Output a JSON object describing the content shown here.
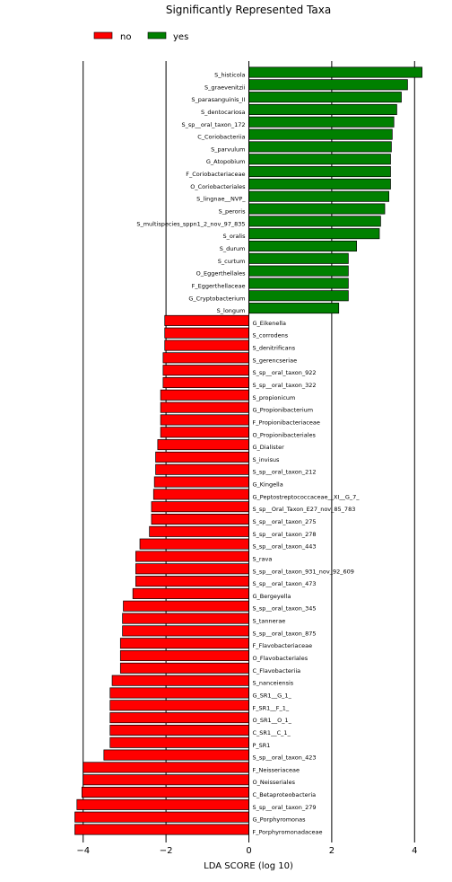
{
  "chart_data": {
    "type": "bar",
    "orientation": "horizontal",
    "title": "Significantly Represented Taxa",
    "xlabel": "LDA SCORE (log 10)",
    "ylabel": "",
    "xlim": [
      -4.6,
      4.6
    ],
    "xticks": [
      -4,
      -2,
      0,
      2,
      4
    ],
    "grid": "vertical lines at x ticks",
    "legend": {
      "position": "top-left",
      "entries": [
        {
          "name": "no",
          "color": "#ff0000"
        },
        {
          "name": "yes",
          "color": "#008000"
        }
      ]
    },
    "colors": {
      "yes": "#008000",
      "no": "#ff0000",
      "edge": "#000000"
    },
    "categories": [
      "S_histicola",
      "S_graevenitzii",
      "S_parasanguinis_II",
      "S_dentocariosa",
      "S_sp__oral_taxon_172",
      "C_Coriobacteriia",
      "S_parvulum",
      "G_Atopobium",
      "F_Coriobacteriaceae",
      "O_Coriobacteriales",
      "S_lingnae__NVP_",
      "S_peroris",
      "S_multispecies_sppn1_2_nov_97_835",
      "S_oralis",
      "S_durum",
      "S_curtum",
      "O_Eggerthellales",
      "F_Eggerthellaceae",
      "G_Cryptobacterium",
      "S_longum",
      "G_Eikenella",
      "S_corrodens",
      "S_denitrificans",
      "S_gerencseriae",
      "S_sp__oral_taxon_922",
      "S_sp__oral_taxon_322",
      "S_propionicum",
      "G_Propionibacterium",
      "F_Propionibacteriaceae",
      "O_Propionibacteriales",
      "G_Dialister",
      "S_invisus",
      "S_sp__oral_taxon_212",
      "G_Kingella",
      "G_Peptostreptococcaceae__XI__G_7_",
      "S_sp__Oral_Taxon_E27_nov_85_783",
      "S_sp__oral_taxon_275",
      "S_sp__oral_taxon_278",
      "S_sp__oral_taxon_443",
      "S_rava",
      "S_sp__oral_taxon_931_nov_92_609",
      "S_sp__oral_taxon_473",
      "G_Bergeyella",
      "S_sp__oral_taxon_345",
      "S_tannerae",
      "S_sp__oral_taxon_875",
      "F_Flavobacteriaceae",
      "O_Flavobacteriales",
      "C_Flavobacteriia",
      "S_nanceiensis",
      "G_SR1__G_1_",
      "F_SR1__F_1_",
      "O_SR1__O_1_",
      "C_SR1__C_1_",
      "P_SR1",
      "S_sp__oral_taxon_423",
      "F_Neisseriaceae",
      "O_Neisseriales",
      "C_Betaproteobacteria",
      "S_sp__oral_taxon_279",
      "G_Porphyromonas",
      "F_Porphyromonadaceae"
    ],
    "values": [
      4.18,
      3.83,
      3.68,
      3.57,
      3.5,
      3.46,
      3.44,
      3.42,
      3.42,
      3.42,
      3.38,
      3.28,
      3.18,
      3.15,
      2.6,
      2.4,
      2.4,
      2.4,
      2.4,
      2.17,
      -2.03,
      -2.03,
      -2.03,
      -2.07,
      -2.07,
      -2.07,
      -2.13,
      -2.13,
      -2.13,
      -2.13,
      -2.2,
      -2.25,
      -2.25,
      -2.28,
      -2.3,
      -2.35,
      -2.35,
      -2.4,
      -2.63,
      -2.73,
      -2.73,
      -2.73,
      -2.8,
      -3.03,
      -3.05,
      -3.05,
      -3.1,
      -3.1,
      -3.1,
      -3.3,
      -3.35,
      -3.35,
      -3.35,
      -3.35,
      -3.35,
      -3.5,
      -4.0,
      -4.0,
      -4.03,
      -4.15,
      -4.2,
      -4.2
    ]
  }
}
